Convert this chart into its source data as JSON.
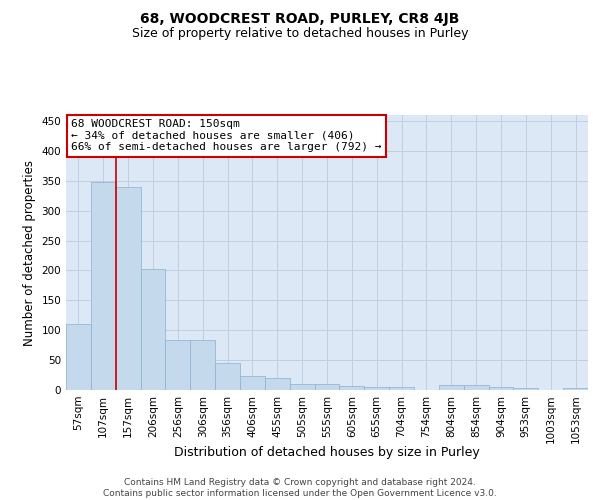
{
  "title": "68, WOODCREST ROAD, PURLEY, CR8 4JB",
  "subtitle": "Size of property relative to detached houses in Purley",
  "xlabel": "Distribution of detached houses by size in Purley",
  "ylabel": "Number of detached properties",
  "annotation_line1": "68 WOODCREST ROAD: 150sqm",
  "annotation_line2": "← 34% of detached houses are smaller (406)",
  "annotation_line3": "66% of semi-detached houses are larger (792) →",
  "footer_line1": "Contains HM Land Registry data © Crown copyright and database right 2024.",
  "footer_line2": "Contains public sector information licensed under the Open Government Licence v3.0.",
  "bin_labels": [
    "57sqm",
    "107sqm",
    "157sqm",
    "206sqm",
    "256sqm",
    "306sqm",
    "356sqm",
    "406sqm",
    "455sqm",
    "505sqm",
    "555sqm",
    "605sqm",
    "655sqm",
    "704sqm",
    "754sqm",
    "804sqm",
    "854sqm",
    "904sqm",
    "953sqm",
    "1003sqm",
    "1053sqm"
  ],
  "bar_heights": [
    110,
    348,
    340,
    202,
    83,
    83,
    46,
    23,
    20,
    10,
    10,
    7,
    5,
    5,
    0,
    8,
    8,
    5,
    3,
    0,
    3
  ],
  "bar_color": "#c5d9ed",
  "bar_edge_color": "#8ab0d0",
  "grid_color": "#c0cfe0",
  "background_color": "#dce8f5",
  "annotation_box_color": "#ffffff",
  "annotation_box_edge": "#cc0000",
  "red_line_x": 1.5,
  "red_line_color": "#cc0000",
  "ylim": [
    0,
    460
  ],
  "yticks": [
    0,
    50,
    100,
    150,
    200,
    250,
    300,
    350,
    400,
    450
  ],
  "title_fontsize": 10,
  "subtitle_fontsize": 9,
  "xlabel_fontsize": 9,
  "ylabel_fontsize": 8.5,
  "tick_fontsize": 7.5,
  "annotation_fontsize": 8,
  "footer_fontsize": 6.5
}
